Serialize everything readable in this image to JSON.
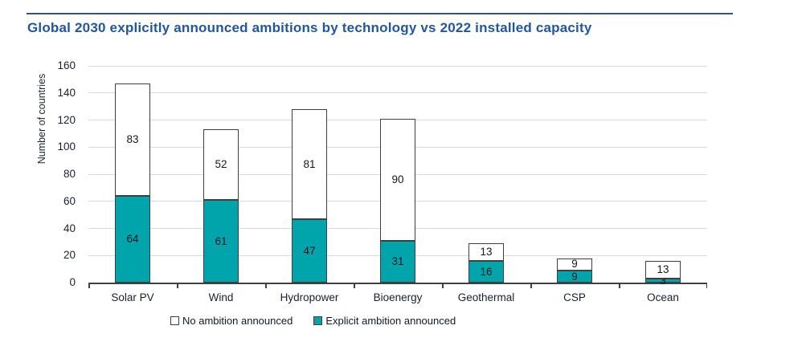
{
  "chart_data": {
    "type": "bar",
    "stacked": true,
    "title": "Global 2030 explicitly announced ambitions by technology vs 2022 installed capacity",
    "ylabel": "Number of countries",
    "xlabel": "",
    "ylim": [
      0,
      160
    ],
    "ytick_step": 20,
    "grid": true,
    "legend_position": "bottom",
    "categories": [
      "Solar PV",
      "Wind",
      "Hydropower",
      "Bioenergy",
      "Geothermal",
      "CSP",
      "Ocean"
    ],
    "series": [
      {
        "name": "Explicit ambition announced",
        "color": "#00A4AB",
        "values": [
          64,
          61,
          47,
          31,
          16,
          9,
          3
        ]
      },
      {
        "name": "No ambition announced",
        "color": "#FFFFFF",
        "values": [
          83,
          52,
          81,
          90,
          13,
          9,
          13
        ]
      }
    ],
    "totals": [
      147,
      113,
      128,
      121,
      29,
      18,
      16
    ],
    "legend": [
      {
        "label": "No ambition announced",
        "color": "#FFFFFF"
      },
      {
        "label": "Explicit ambition announced",
        "color": "#00A4AB"
      }
    ],
    "colors": {
      "title": "#2156A5",
      "top_rule": "#33547F",
      "bar_border": "#3F3F3F",
      "gridline": "#DADADA",
      "axis": "#404040",
      "text": "#1B2030"
    }
  }
}
